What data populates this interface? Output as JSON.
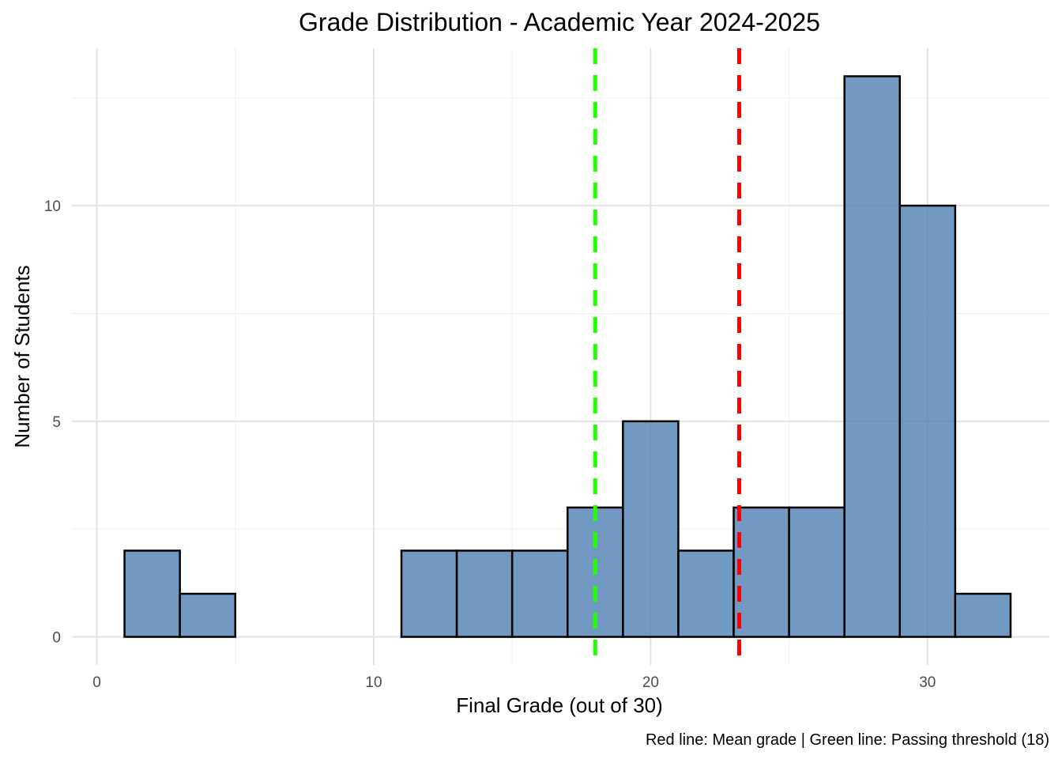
{
  "chart_data": {
    "type": "bar",
    "subtype": "histogram",
    "title": "Grade Distribution - Academic Year 2024-2025",
    "xlabel": "Final Grade (out of 30)",
    "ylabel": "Number of Students",
    "caption": "Red line: Mean grade | Green line: Passing threshold (18)",
    "xlim": [
      -0.9,
      34.4
    ],
    "ylim": [
      -0.65,
      13.65
    ],
    "x_ticks": [
      0,
      10,
      20,
      30
    ],
    "x_tick_labels": [
      "0",
      "10",
      "20",
      "30"
    ],
    "x_minor_ticks": [
      5,
      15,
      25
    ],
    "y_ticks": [
      0,
      5,
      10
    ],
    "y_tick_labels": [
      "0",
      "5",
      "10"
    ],
    "y_minor_ticks": [
      2.5,
      7.5,
      12.5
    ],
    "grid": true,
    "bin_width": 2,
    "bins": [
      {
        "x0": 1,
        "x1": 3,
        "count": 2
      },
      {
        "x0": 3,
        "x1": 5,
        "count": 1
      },
      {
        "x0": 5,
        "x1": 7,
        "count": 0
      },
      {
        "x0": 7,
        "x1": 9,
        "count": 0
      },
      {
        "x0": 9,
        "x1": 11,
        "count": 0
      },
      {
        "x0": 11,
        "x1": 13,
        "count": 2
      },
      {
        "x0": 13,
        "x1": 15,
        "count": 2
      },
      {
        "x0": 15,
        "x1": 17,
        "count": 2
      },
      {
        "x0": 17,
        "x1": 19,
        "count": 3
      },
      {
        "x0": 19,
        "x1": 21,
        "count": 5
      },
      {
        "x0": 21,
        "x1": 23,
        "count": 2
      },
      {
        "x0": 23,
        "x1": 25,
        "count": 3
      },
      {
        "x0": 25,
        "x1": 27,
        "count": 3
      },
      {
        "x0": 27,
        "x1": 29,
        "count": 13
      },
      {
        "x0": 29,
        "x1": 31,
        "count": 10
      },
      {
        "x0": 31,
        "x1": 33,
        "count": 1
      }
    ],
    "reference_lines": [
      {
        "name": "passing-threshold",
        "x": 18,
        "color": "#22ff00",
        "dash": "dashed"
      },
      {
        "name": "mean-grade",
        "x": 23.2,
        "color": "#ff0000",
        "dash": "dashed"
      }
    ],
    "colors": {
      "bar_fill": "#4f7fb2",
      "bar_fill_opacity": 0.8,
      "bar_stroke": "#000000"
    }
  }
}
